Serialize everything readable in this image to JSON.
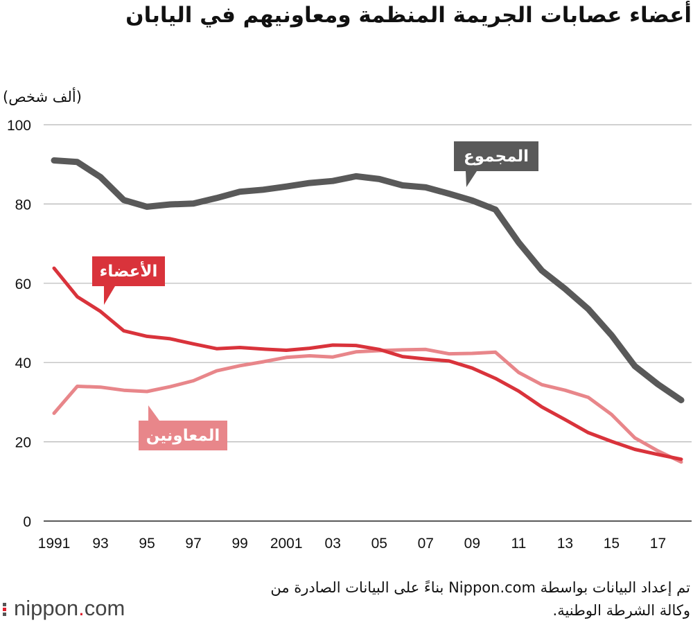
{
  "title": "أعضاء عصابات الجريمة المنظمة ومعاونيهم في اليابان",
  "source_line1": "تم إعداد البيانات بواسطة Nippon.com بناءً على البيانات الصادرة من",
  "source_line2": "وكالة الشرطة الوطنية.",
  "logo": {
    "pre": "nippon",
    "dot": ".",
    "post": "com"
  },
  "colors": {
    "total": "#595959",
    "members": "#d9333b",
    "associates": "#e8868a",
    "grid": "#b5b5b5"
  },
  "chart_data": {
    "type": "line",
    "title": "أعضاء عصابات الجريمة المنظمة ومعاونيهم في اليابان",
    "ylabel": "(ألف شخص)",
    "xlabel": "",
    "ylim": [
      0,
      100
    ],
    "yticks": [
      0,
      20,
      40,
      60,
      80,
      100
    ],
    "x": [
      1991,
      1992,
      1993,
      1994,
      1995,
      1996,
      1997,
      1998,
      1999,
      2000,
      2001,
      2002,
      2003,
      2004,
      2005,
      2006,
      2007,
      2008,
      2009,
      2010,
      2011,
      2012,
      2013,
      2014,
      2015,
      2016,
      2017,
      2018
    ],
    "xticks": [
      {
        "x": 1991,
        "label": "1991"
      },
      {
        "x": 1993,
        "label": "93"
      },
      {
        "x": 1995,
        "label": "95"
      },
      {
        "x": 1997,
        "label": "97"
      },
      {
        "x": 1999,
        "label": "99"
      },
      {
        "x": 2001,
        "label": "2001"
      },
      {
        "x": 2003,
        "label": "03"
      },
      {
        "x": 2005,
        "label": "05"
      },
      {
        "x": 2007,
        "label": "07"
      },
      {
        "x": 2009,
        "label": "09"
      },
      {
        "x": 2011,
        "label": "11"
      },
      {
        "x": 2013,
        "label": "13"
      },
      {
        "x": 2015,
        "label": "15"
      },
      {
        "x": 2017,
        "label": "17"
      }
    ],
    "grid": true,
    "series": [
      {
        "key": "total",
        "name": "المجموع",
        "color": "#595959",
        "values": [
          91.0,
          90.6,
          86.8,
          81.0,
          79.3,
          79.9,
          80.1,
          81.5,
          83.1,
          83.6,
          84.4,
          85.3,
          85.8,
          87.0,
          86.3,
          84.7,
          84.2,
          82.6,
          80.9,
          78.6,
          70.3,
          63.2,
          58.6,
          53.5,
          46.9,
          39.1,
          34.5,
          30.5
        ]
      },
      {
        "key": "members",
        "name": "الأعضاء",
        "color": "#d9333b",
        "values": [
          63.8,
          56.6,
          52.9,
          48.0,
          46.6,
          46.0,
          44.7,
          43.5,
          43.8,
          43.4,
          43.1,
          43.6,
          44.4,
          44.3,
          43.3,
          41.5,
          40.9,
          40.4,
          38.6,
          36.0,
          32.8,
          28.8,
          25.6,
          22.3,
          20.1,
          18.1,
          16.8,
          15.6
        ]
      },
      {
        "key": "associates",
        "name": "المعاونين",
        "color": "#e8868a",
        "values": [
          27.2,
          34.0,
          33.8,
          33.0,
          32.7,
          33.9,
          35.4,
          37.9,
          39.2,
          40.2,
          41.3,
          41.7,
          41.4,
          42.7,
          43.0,
          43.2,
          43.3,
          42.2,
          42.3,
          42.6,
          37.5,
          34.4,
          33.0,
          31.2,
          26.9,
          21.0,
          17.7,
          14.9
        ]
      }
    ]
  }
}
